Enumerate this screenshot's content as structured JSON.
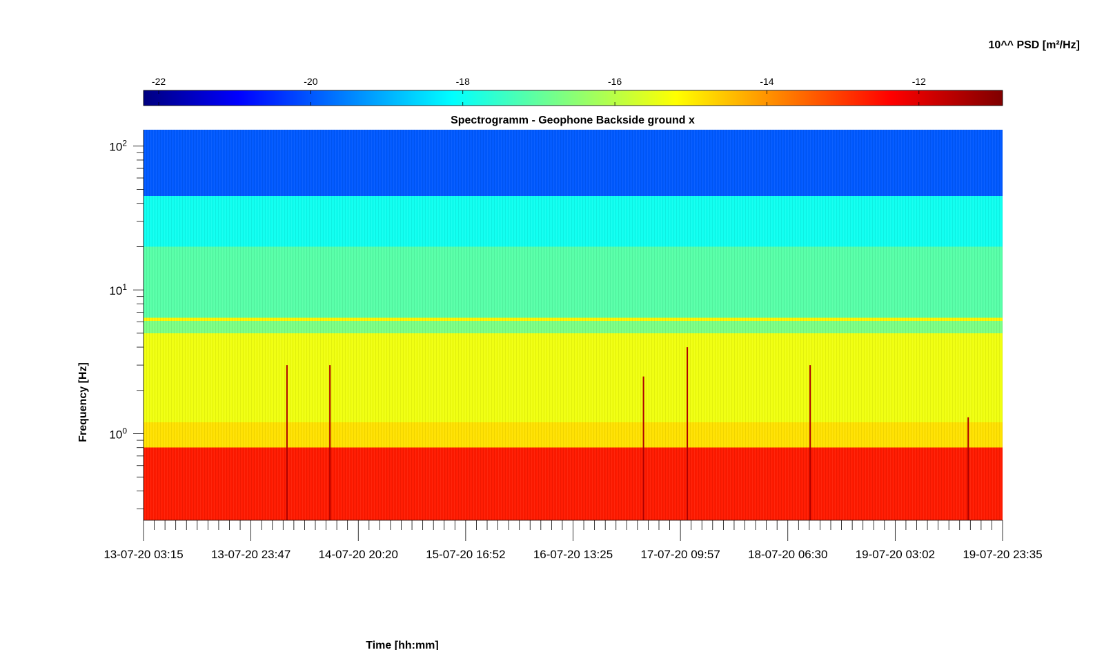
{
  "chart_data": {
    "type": "heatmap",
    "title": "Spectrogramm - Geophone Backside ground x",
    "xlabel": "Time [hh:mm]",
    "ylabel": "Frequency [Hz]",
    "x_tick_labels": [
      "13-07-20 03:15",
      "13-07-20 23:47",
      "14-07-20 20:20",
      "15-07-20 16:52",
      "16-07-20 13:25",
      "17-07-20 09:57",
      "18-07-20 06:30",
      "19-07-20 03:02",
      "19-07-20 23:35"
    ],
    "y_scale": "log",
    "ylim": [
      0.25,
      130
    ],
    "y_tick_values": [
      1,
      10,
      100
    ],
    "y_tick_labels": [
      {
        "base": "10",
        "exp": "0"
      },
      {
        "base": "10",
        "exp": "1"
      },
      {
        "base": "10",
        "exp": "2"
      }
    ],
    "colorbar": {
      "label": "10^^ PSD [m²/Hz]",
      "position": "top",
      "colormap": "jet",
      "range": [
        -22.2,
        -10.9
      ],
      "tick_values": [
        -22,
        -20,
        -18,
        -16,
        -14,
        -12
      ],
      "tick_labels": [
        "-22",
        "-20",
        "-18",
        "-16",
        "-14",
        "-12"
      ]
    },
    "bands": [
      {
        "fmin": 0.25,
        "fmax": 0.8,
        "log_psd": -12.6
      },
      {
        "fmin": 0.8,
        "fmax": 1.2,
        "log_psd": -14.8
      },
      {
        "fmin": 1.2,
        "fmax": 5,
        "log_psd": -15.3
      },
      {
        "fmin": 5,
        "fmax": 6.1,
        "log_psd": -16.6
      },
      {
        "fmin": 6.1,
        "fmax": 6.4,
        "log_psd": -15.0
      },
      {
        "fmin": 6.4,
        "fmax": 20,
        "log_psd": -17.0
      },
      {
        "fmin": 20,
        "fmax": 45,
        "log_psd": -17.8
      },
      {
        "fmin": 45,
        "fmax": 130,
        "log_psd": -19.8
      }
    ],
    "transients": [
      {
        "time_frac": 0.167,
        "fmax": 3
      },
      {
        "time_frac": 0.217,
        "fmax": 3
      },
      {
        "time_frac": 0.582,
        "fmax": 2.5
      },
      {
        "time_frac": 0.633,
        "fmax": 4
      },
      {
        "time_frac": 0.776,
        "fmax": 3
      },
      {
        "time_frac": 0.96,
        "fmax": 1.3
      }
    ]
  }
}
